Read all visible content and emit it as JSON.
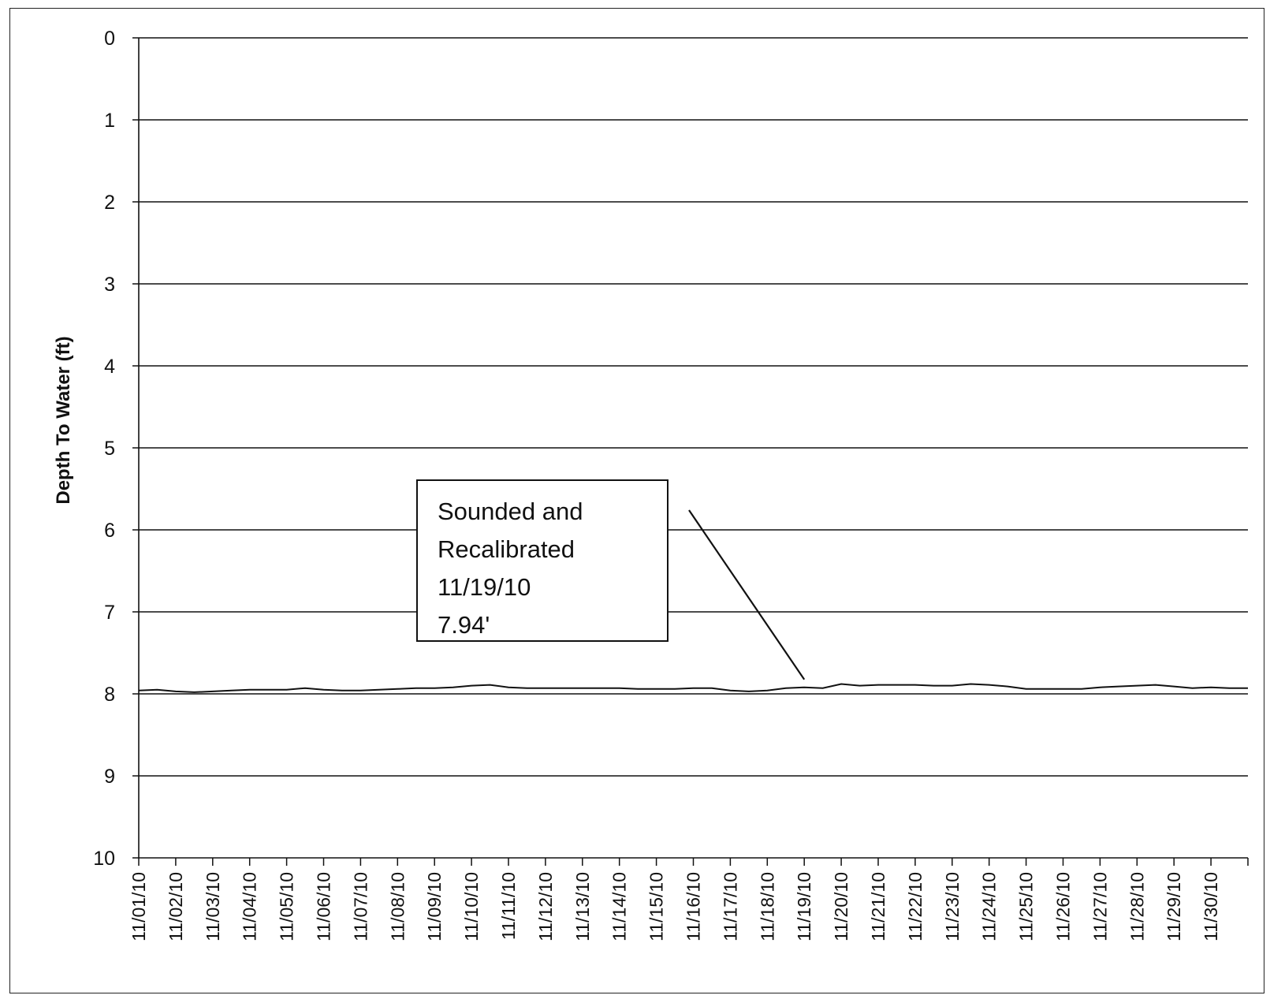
{
  "chart_data": {
    "type": "line",
    "title": "",
    "xlabel": "",
    "ylabel": "Depth To Water (ft)",
    "ylim": [
      0,
      10
    ],
    "y_inverted": true,
    "y_ticks": [
      "0",
      "1",
      "2",
      "3",
      "4",
      "5",
      "6",
      "7",
      "8",
      "9",
      "10"
    ],
    "grid": "horizontal",
    "legend": "none",
    "x_tick_labels": [
      "11/01/10",
      "11/02/10",
      "11/03/10",
      "11/04/10",
      "11/05/10",
      "11/06/10",
      "11/07/10",
      "11/08/10",
      "11/09/10",
      "11/10/10",
      "11/11/10",
      "11/12/10",
      "11/13/10",
      "11/14/10",
      "11/15/10",
      "11/16/10",
      "11/17/10",
      "11/18/10",
      "11/19/10",
      "11/20/10",
      "11/21/10",
      "11/22/10",
      "11/23/10",
      "11/24/10",
      "11/25/10",
      "11/26/10",
      "11/27/10",
      "11/28/10",
      "11/29/10",
      "11/30/10"
    ],
    "xlim": [
      "11/01/10",
      "12/01/10"
    ],
    "series": [
      {
        "x": [
          "11/01/10",
          "11/01/10 12:00",
          "11/02/10",
          "11/02/10 12:00",
          "11/03/10",
          "11/03/10 12:00",
          "11/04/10",
          "11/04/10 12:00",
          "11/05/10",
          "11/05/10 12:00",
          "11/06/10",
          "11/06/10 12:00",
          "11/07/10",
          "11/07/10 12:00",
          "11/08/10",
          "11/08/10 12:00",
          "11/09/10",
          "11/09/10 12:00",
          "11/10/10",
          "11/10/10 12:00",
          "11/11/10",
          "11/11/10 12:00",
          "11/12/10",
          "11/12/10 12:00",
          "11/13/10",
          "11/13/10 12:00",
          "11/14/10",
          "11/14/10 12:00",
          "11/15/10",
          "11/15/10 12:00",
          "11/16/10",
          "11/16/10 12:00",
          "11/17/10",
          "11/17/10 12:00",
          "11/18/10",
          "11/18/10 12:00",
          "11/19/10",
          "11/19/10 12:00",
          "11/20/10",
          "11/20/10 12:00",
          "11/21/10",
          "11/21/10 12:00",
          "11/22/10",
          "11/22/10 12:00",
          "11/23/10",
          "11/23/10 12:00",
          "11/24/10",
          "11/24/10 12:00",
          "11/25/10",
          "11/25/10 12:00",
          "11/26/10",
          "11/26/10 12:00",
          "11/27/10",
          "11/27/10 12:00",
          "11/28/10",
          "11/28/10 12:00",
          "11/29/10",
          "11/29/10 12:00",
          "11/30/10",
          "11/30/10 12:00",
          "12/01/10"
        ],
        "y": [
          7.96,
          7.95,
          7.97,
          7.98,
          7.97,
          7.96,
          7.95,
          7.95,
          7.95,
          7.93,
          7.95,
          7.96,
          7.96,
          7.95,
          7.94,
          7.93,
          7.93,
          7.92,
          7.9,
          7.89,
          7.92,
          7.93,
          7.93,
          7.93,
          7.93,
          7.93,
          7.93,
          7.94,
          7.94,
          7.94,
          7.93,
          7.93,
          7.96,
          7.97,
          7.96,
          7.93,
          7.92,
          7.93,
          7.88,
          7.9,
          7.89,
          7.89,
          7.89,
          7.9,
          7.9,
          7.88,
          7.89,
          7.91,
          7.94,
          7.94,
          7.94,
          7.94,
          7.92,
          7.91,
          7.9,
          7.89,
          7.91,
          7.93,
          7.92,
          7.93,
          7.93
        ]
      }
    ],
    "annotations": [
      {
        "lines": [
          "Sounded and",
          "Recalibrated",
          "11/19/10",
          "7.94'"
        ],
        "points_to": {
          "x": "11/19/10",
          "y": 7.94
        }
      }
    ]
  }
}
